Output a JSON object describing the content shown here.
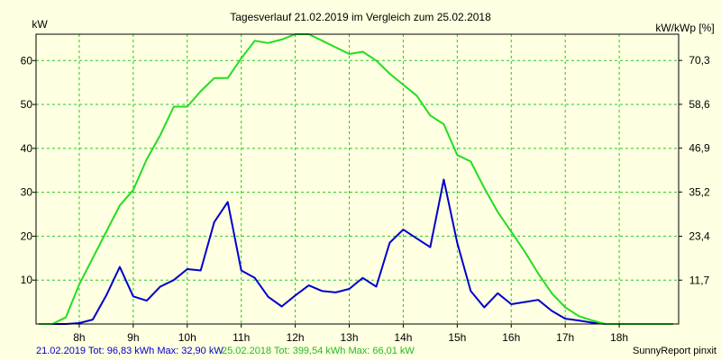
{
  "chart_data": {
    "type": "line",
    "title": "Tagesverlauf 21.02.2019 im Vergleich zum 25.02.2018",
    "ylabel_left": "kW",
    "ylabel_right": "kW/kWp [%]",
    "x_ticks": [
      8,
      9,
      10,
      11,
      12,
      13,
      14,
      15,
      16,
      17,
      18
    ],
    "x_tick_labels": [
      "8h",
      "9h",
      "10h",
      "11h",
      "12h",
      "13h",
      "14h",
      "15h",
      "16h",
      "17h",
      "18h"
    ],
    "xlim": [
      7.2,
      19.1
    ],
    "y_ticks_left": [
      10,
      20,
      30,
      40,
      50,
      60
    ],
    "y_tick_labels_left": [
      "10",
      "20",
      "30",
      "40",
      "50",
      "60"
    ],
    "ylim_left": [
      0,
      66
    ],
    "y_ticks_right": [
      11.7,
      23.4,
      35.2,
      46.9,
      58.6,
      70.3
    ],
    "y_tick_labels_right": [
      "11,7",
      "23,4",
      "35,2",
      "46,9",
      "58,6",
      "70,3"
    ],
    "ylim_right": [
      0,
      77.3
    ],
    "grid": true,
    "series": [
      {
        "name": "21.02.2019",
        "color": "#0000cc",
        "x": [
          7.25,
          7.5,
          7.75,
          8.0,
          8.25,
          8.5,
          8.75,
          9.0,
          9.25,
          9.5,
          9.75,
          10.0,
          10.25,
          10.5,
          10.75,
          11.0,
          11.25,
          11.5,
          11.75,
          12.0,
          12.25,
          12.5,
          12.75,
          13.0,
          13.25,
          13.5,
          13.75,
          14.0,
          14.25,
          14.5,
          14.75,
          15.0,
          15.25,
          15.5,
          15.75,
          16.0,
          16.25,
          16.5,
          16.75,
          17.0,
          17.25,
          17.5,
          17.75,
          18.0,
          18.25,
          18.5,
          18.75,
          19.0
        ],
        "values": [
          0,
          0,
          0,
          0.2,
          1.0,
          6.5,
          13.0,
          6.3,
          5.3,
          8.5,
          10.0,
          12.5,
          12.2,
          23.2,
          27.8,
          12.2,
          10.5,
          6.2,
          4.0,
          6.5,
          8.8,
          7.5,
          7.2,
          8.0,
          10.5,
          8.5,
          18.5,
          21.5,
          19.5,
          17.5,
          32.9,
          18.5,
          7.5,
          3.8,
          7.0,
          4.5,
          5.0,
          5.5,
          3.0,
          1.2,
          0.8,
          0.3,
          0,
          0,
          0,
          0,
          0,
          0
        ]
      },
      {
        "name": "25.02.2018",
        "color": "#22dd22",
        "x": [
          7.25,
          7.5,
          7.75,
          8.0,
          8.25,
          8.5,
          8.75,
          9.0,
          9.25,
          9.5,
          9.75,
          10.0,
          10.25,
          10.5,
          10.75,
          11.0,
          11.25,
          11.5,
          11.75,
          12.0,
          12.25,
          12.5,
          12.75,
          13.0,
          13.25,
          13.5,
          13.75,
          14.0,
          14.25,
          14.5,
          14.75,
          15.0,
          15.25,
          15.5,
          15.75,
          16.0,
          16.25,
          16.5,
          16.75,
          17.0,
          17.25,
          17.5,
          17.75,
          18.0,
          18.25,
          18.5,
          18.75,
          19.0
        ],
        "values": [
          0,
          0,
          1.5,
          9.0,
          15.0,
          21.0,
          27.0,
          30.5,
          37.5,
          43.0,
          49.5,
          49.5,
          53.0,
          56.0,
          56.0,
          60.5,
          64.5,
          64.0,
          64.8,
          66.0,
          66.0,
          64.5,
          63.0,
          61.5,
          62.0,
          60.0,
          57.0,
          54.5,
          52.0,
          47.5,
          45.5,
          38.5,
          37.0,
          31.0,
          25.5,
          21.0,
          16.5,
          11.5,
          7.0,
          3.8,
          1.8,
          0.8,
          0,
          0,
          0,
          0,
          0,
          0
        ]
      }
    ]
  },
  "footer": {
    "series1_text": "21.02.2019 Tot: 96,83 kWh Max: 32,90 kW",
    "series2_text": "25.02.2018 Tot: 399,54 kWh Max: 66,01 kW",
    "credit": "SunnyReport pinxit"
  },
  "colors": {
    "background": "#ffffe1",
    "grid": "#22cc22",
    "axes": "#000000"
  }
}
